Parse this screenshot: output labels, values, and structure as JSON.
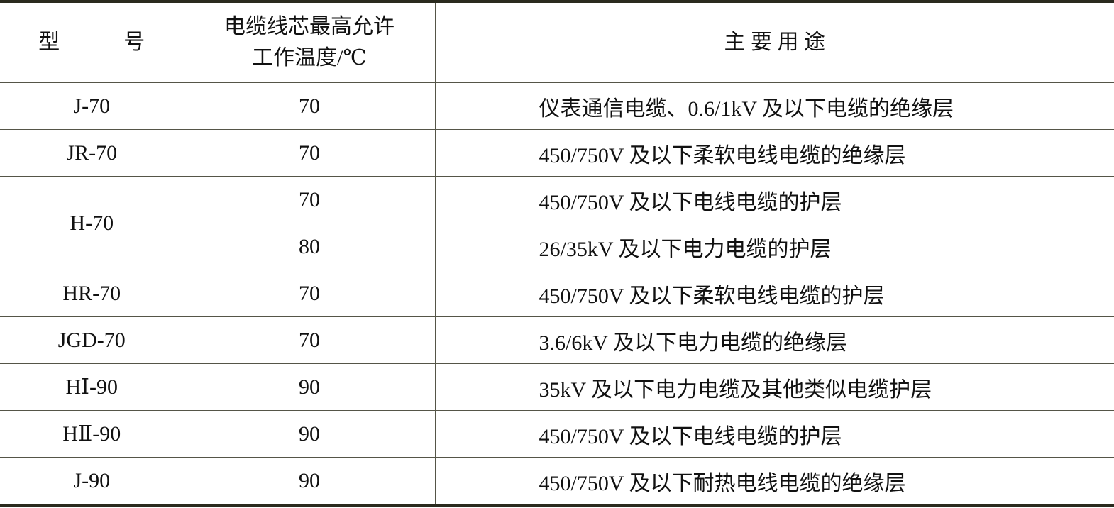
{
  "header": {
    "model": "型　　　号",
    "temp_line1": "电缆线芯最高允许",
    "temp_line2": "工作温度/℃",
    "use": "主 要 用 途"
  },
  "rows": [
    {
      "model": "J-70",
      "temp": "70",
      "use": "仪表通信电缆、0.6/1kV 及以下电缆的绝缘层"
    },
    {
      "model": "JR-70",
      "temp": "70",
      "use": "450/750V 及以下柔软电线电缆的绝缘层"
    },
    {
      "model": "H-70",
      "temp": "70",
      "use": "450/750V 及以下电线电缆的护层"
    },
    {
      "model": "",
      "temp": "80",
      "use": "26/35kV 及以下电力电缆的护层"
    },
    {
      "model": "HR-70",
      "temp": "70",
      "use": "450/750V 及以下柔软电线电缆的护层"
    },
    {
      "model": "JGD-70",
      "temp": "70",
      "use": "3.6/6kV 及以下电力电缆的绝缘层"
    },
    {
      "model": "HⅠ-90",
      "temp": "90",
      "use": "35kV 及以下电力电缆及其他类似电缆护层"
    },
    {
      "model": "HⅡ-90",
      "temp": "90",
      "use": "450/750V 及以下电线电缆的护层"
    },
    {
      "model": "J-90",
      "temp": "90",
      "use": "450/750V 及以下耐热电线电缆的绝缘层"
    }
  ]
}
